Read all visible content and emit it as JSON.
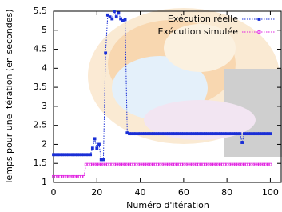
{
  "chart_data": {
    "type": "line",
    "xlabel": "Numéro d'itération",
    "ylabel": "Temps pour une itération (en secondes)",
    "x": [
      0,
      1,
      2,
      3,
      4,
      5,
      6,
      7,
      8,
      9,
      10,
      11,
      12,
      13,
      14,
      15,
      16,
      17,
      18,
      19,
      20,
      21,
      22,
      23,
      24,
      25,
      26,
      27,
      28,
      29,
      30,
      31,
      32,
      33,
      34,
      35,
      36,
      37,
      38,
      39,
      40,
      41,
      42,
      43,
      44,
      45,
      46,
      47,
      48,
      49,
      50,
      51,
      52,
      53,
      54,
      55,
      56,
      57,
      58,
      59,
      60,
      61,
      62,
      63,
      64,
      65,
      66,
      67,
      68,
      69,
      70,
      71,
      72,
      73,
      74,
      75,
      76,
      77,
      78,
      79,
      80,
      81,
      82,
      83,
      84,
      85,
      86,
      87,
      88,
      89,
      90,
      91,
      92,
      93,
      94,
      95,
      96,
      97,
      98,
      99,
      100
    ],
    "series": [
      {
        "name": "Exécution réelle",
        "color": "#1a2fd6",
        "values": [
          1.73,
          1.73,
          1.73,
          1.73,
          1.73,
          1.73,
          1.73,
          1.73,
          1.73,
          1.73,
          1.73,
          1.73,
          1.73,
          1.73,
          1.73,
          1.73,
          1.73,
          1.73,
          1.9,
          2.15,
          1.9,
          2.0,
          1.6,
          1.6,
          4.4,
          5.4,
          5.35,
          5.3,
          5.5,
          5.35,
          5.45,
          5.3,
          5.25,
          5.28,
          2.3,
          2.28,
          2.28,
          2.28,
          2.28,
          2.28,
          2.28,
          2.28,
          2.28,
          2.28,
          2.28,
          2.28,
          2.28,
          2.28,
          2.28,
          2.28,
          2.28,
          2.28,
          2.28,
          2.28,
          2.28,
          2.28,
          2.28,
          2.28,
          2.28,
          2.28,
          2.28,
          2.28,
          2.28,
          2.28,
          2.28,
          2.28,
          2.28,
          2.28,
          2.28,
          2.28,
          2.28,
          2.28,
          2.28,
          2.28,
          2.28,
          2.28,
          2.28,
          2.28,
          2.28,
          2.28,
          2.28,
          2.28,
          2.28,
          2.28,
          2.28,
          2.28,
          2.28,
          2.05,
          2.28,
          2.28,
          2.28,
          2.28,
          2.28,
          2.28,
          2.28,
          2.28,
          2.28,
          2.28,
          2.28,
          2.28,
          2.28
        ]
      },
      {
        "name": "Exécution simulée",
        "color": "#e020e0",
        "values": [
          1.15,
          1.15,
          1.15,
          1.15,
          1.15,
          1.15,
          1.15,
          1.15,
          1.15,
          1.15,
          1.15,
          1.15,
          1.15,
          1.15,
          1.15,
          1.47,
          1.47,
          1.47,
          1.47,
          1.47,
          1.47,
          1.47,
          1.47,
          1.47,
          1.47,
          1.47,
          1.47,
          1.47,
          1.47,
          1.47,
          1.47,
          1.47,
          1.47,
          1.47,
          1.47,
          1.47,
          1.47,
          1.47,
          1.47,
          1.47,
          1.47,
          1.47,
          1.47,
          1.47,
          1.47,
          1.47,
          1.47,
          1.47,
          1.47,
          1.47,
          1.47,
          1.47,
          1.47,
          1.47,
          1.47,
          1.47,
          1.47,
          1.47,
          1.47,
          1.47,
          1.47,
          1.47,
          1.47,
          1.47,
          1.47,
          1.47,
          1.47,
          1.47,
          1.47,
          1.47,
          1.47,
          1.47,
          1.47,
          1.47,
          1.47,
          1.47,
          1.47,
          1.47,
          1.47,
          1.47,
          1.47,
          1.47,
          1.47,
          1.47,
          1.47,
          1.47,
          1.47,
          1.47,
          1.47,
          1.47,
          1.47,
          1.47,
          1.47,
          1.47,
          1.47,
          1.47,
          1.47,
          1.47,
          1.47,
          1.47,
          1.47
        ]
      }
    ],
    "xlim": [
      0,
      105
    ],
    "xticks": [
      0,
      20,
      40,
      60,
      80,
      100
    ],
    "ylim": [
      1,
      5.5
    ],
    "yticks": [
      1,
      1.5,
      2,
      2.5,
      3,
      3.5,
      4,
      4.5,
      5,
      5.5
    ],
    "grid": false,
    "legend": "upper right"
  }
}
